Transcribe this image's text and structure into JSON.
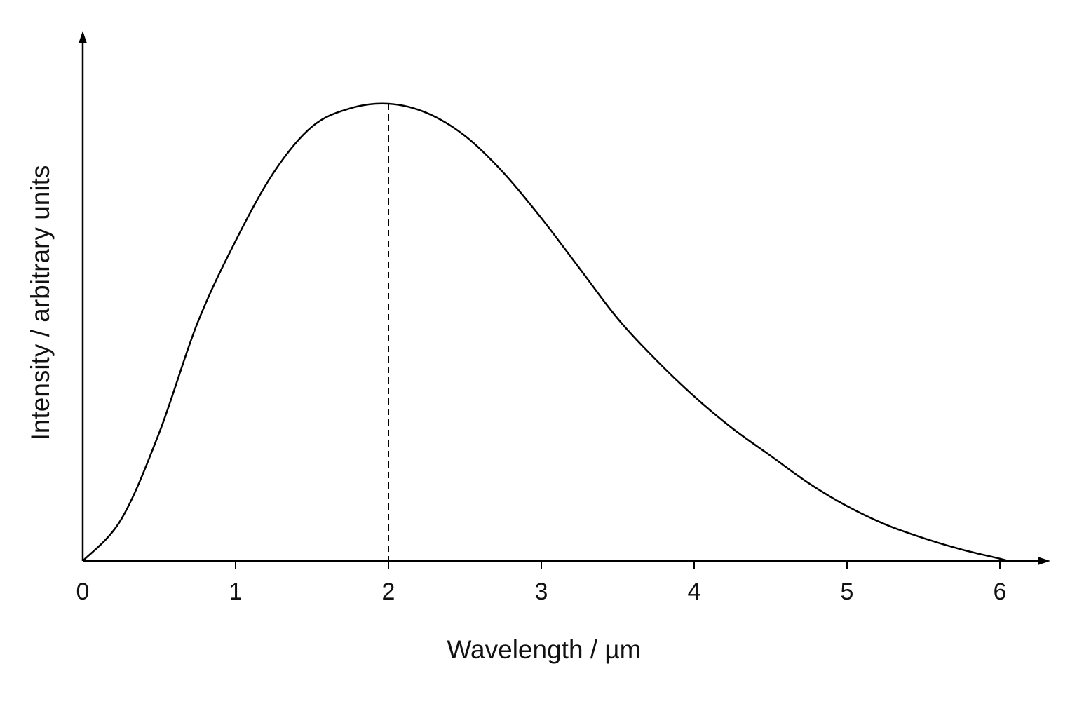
{
  "chart_data": {
    "type": "line",
    "title": "",
    "xlabel": "Wavelength / µm",
    "ylabel": "Intensity / arbitrary units",
    "xlim": [
      0,
      6.3
    ],
    "ylim": [
      0,
      1.16
    ],
    "x_ticks": [
      "0",
      "1",
      "2",
      "3",
      "4",
      "5",
      "6"
    ],
    "y_ticks": [],
    "grid": false,
    "legend": "none",
    "series": [
      {
        "x": [
          0,
          0.25,
          0.5,
          0.75,
          1.0,
          1.25,
          1.5,
          1.75,
          2.0,
          2.25,
          2.5,
          2.75,
          3.0,
          3.25,
          3.5,
          3.75,
          4.0,
          4.25,
          4.5,
          4.75,
          5.0,
          5.25,
          5.5,
          5.75,
          6.0,
          6.05
        ],
        "y": [
          0,
          0.09,
          0.28,
          0.52,
          0.7,
          0.85,
          0.95,
          0.99,
          1.0,
          0.98,
          0.93,
          0.85,
          0.75,
          0.64,
          0.53,
          0.44,
          0.36,
          0.29,
          0.23,
          0.17,
          0.12,
          0.08,
          0.05,
          0.025,
          0.005,
          0.0
        ]
      }
    ],
    "peak_marker": {
      "x": 2,
      "y": 1.0,
      "style": "dashed-vertical"
    },
    "colors": {
      "line": "#000000",
      "axes": "#000000",
      "background": "#ffffff"
    }
  }
}
